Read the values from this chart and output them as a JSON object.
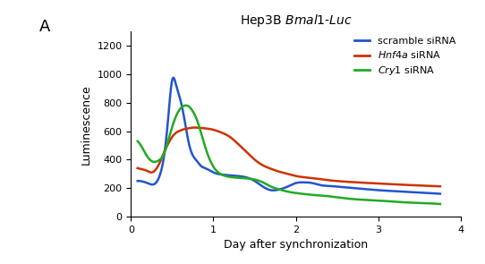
{
  "panel_label": "A",
  "xlabel": "Day after synchronization",
  "ylabel": "Luminescence",
  "xlim": [
    0,
    4
  ],
  "ylim": [
    0,
    1300
  ],
  "yticks": [
    0,
    200,
    400,
    600,
    800,
    1000,
    1200
  ],
  "xticks": [
    0,
    1,
    2,
    3,
    4
  ],
  "blue_x": [
    0.08,
    0.15,
    0.2,
    0.25,
    0.3,
    0.35,
    0.4,
    0.45,
    0.5,
    0.55,
    0.6,
    0.65,
    0.7,
    0.75,
    0.8,
    0.85,
    0.9,
    1.0,
    1.1,
    1.2,
    1.3,
    1.4,
    1.5,
    1.6,
    1.7,
    1.8,
    1.9,
    2.0,
    2.1,
    2.2,
    2.3,
    2.4,
    2.5,
    2.6,
    2.8,
    3.0,
    3.2,
    3.5,
    3.75
  ],
  "blue_y": [
    250,
    245,
    235,
    225,
    235,
    290,
    420,
    680,
    960,
    920,
    820,
    680,
    520,
    430,
    390,
    355,
    340,
    310,
    295,
    290,
    285,
    275,
    250,
    210,
    185,
    190,
    210,
    235,
    240,
    235,
    220,
    215,
    210,
    205,
    195,
    185,
    178,
    168,
    160
  ],
  "red_x": [
    0.08,
    0.15,
    0.2,
    0.25,
    0.3,
    0.35,
    0.4,
    0.45,
    0.5,
    0.55,
    0.6,
    0.65,
    0.7,
    0.75,
    0.8,
    0.9,
    1.0,
    1.1,
    1.2,
    1.3,
    1.4,
    1.5,
    1.6,
    1.7,
    1.8,
    1.9,
    2.0,
    2.2,
    2.4,
    2.6,
    2.8,
    3.0,
    3.2,
    3.5,
    3.75
  ],
  "red_y": [
    340,
    330,
    320,
    310,
    330,
    380,
    450,
    510,
    560,
    590,
    605,
    615,
    620,
    625,
    625,
    620,
    610,
    590,
    560,
    510,
    455,
    400,
    360,
    335,
    315,
    300,
    285,
    270,
    255,
    245,
    238,
    232,
    226,
    218,
    212
  ],
  "green_x": [
    0.08,
    0.12,
    0.15,
    0.2,
    0.25,
    0.3,
    0.35,
    0.4,
    0.45,
    0.5,
    0.55,
    0.6,
    0.65,
    0.7,
    0.75,
    0.8,
    0.9,
    1.0,
    1.1,
    1.2,
    1.3,
    1.4,
    1.5,
    1.6,
    1.7,
    1.8,
    1.9,
    2.0,
    2.1,
    2.2,
    2.3,
    2.5,
    2.7,
    3.0,
    3.3,
    3.5,
    3.75
  ],
  "green_y": [
    530,
    500,
    470,
    420,
    390,
    385,
    400,
    440,
    530,
    630,
    710,
    760,
    780,
    775,
    740,
    680,
    490,
    350,
    295,
    278,
    272,
    268,
    260,
    240,
    210,
    190,
    175,
    165,
    158,
    152,
    148,
    135,
    122,
    112,
    100,
    95,
    88
  ],
  "blue_color": "#2255cc",
  "red_color": "#cc3300",
  "green_color": "#22aa22",
  "linewidth": 1.8,
  "title": "Hep3B "
}
